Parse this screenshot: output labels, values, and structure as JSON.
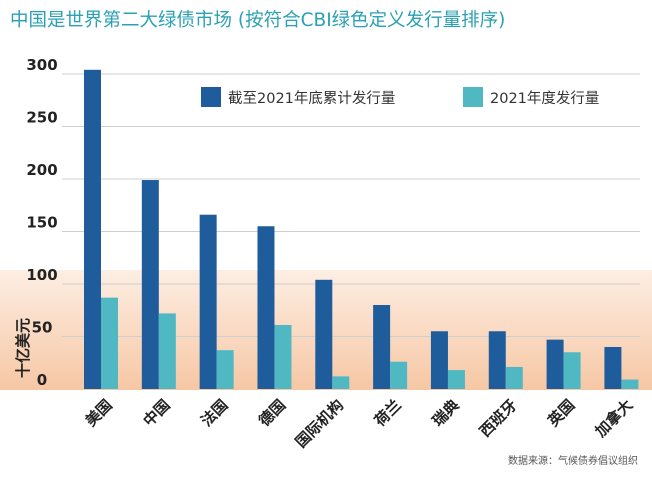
{
  "title": "中国是世界第二大绿债市场 (按符合CBI绿色定义发行量排序)",
  "source": "数据来源：气候债券倡议组织",
  "colors": {
    "title": "#2aa1b4",
    "cumulative": "#1f5c9c",
    "annual": "#4fb8c3",
    "gridline": "#cfcfcf",
    "band_top": "#fdeee3",
    "band_bottom": "#f6c7a4"
  },
  "chart_data": {
    "type": "bar",
    "title": "中国是世界第二大绿债市场 (按符合CBI绿色定义发行量排序)",
    "xlabel": "",
    "ylabel": "十亿美元",
    "ylim": [
      0,
      300
    ],
    "yticks": [
      0,
      50,
      100,
      150,
      200,
      250,
      300
    ],
    "grid": true,
    "legend_position": "top-right",
    "categories": [
      "美国",
      "中国",
      "法国",
      "德国",
      "国际机构",
      "荷兰",
      "瑞典",
      "西班牙",
      "英国",
      "加拿大"
    ],
    "series": [
      {
        "name": "截至2021年底累计发行量",
        "values": [
          304,
          199,
          166,
          155,
          104,
          80,
          55,
          55,
          47,
          40
        ]
      },
      {
        "name": "2021年度发行量",
        "values": [
          87,
          72,
          37,
          61,
          12,
          26,
          18,
          21,
          35,
          9
        ]
      }
    ]
  }
}
